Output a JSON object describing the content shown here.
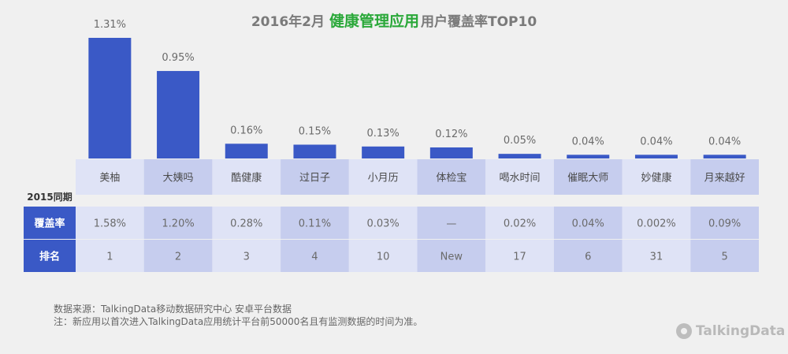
{
  "title": {
    "prefix": "2016年2月",
    "highlight": "健康管理应用",
    "suffix": "用户覆盖率TOP10"
  },
  "colors": {
    "bar": "#3a59c6",
    "row_head": "#3a59c6",
    "table_light": "#dfe3f6",
    "table_dark": "#c6cdee",
    "new_label": "#2aa839"
  },
  "chart_data": {
    "type": "bar",
    "categories": [
      "美柚",
      "大姨吗",
      "酷健康",
      "过日子",
      "小月历",
      "体检宝",
      "喝水时间",
      "催眠大师",
      "妙健康",
      "月来越好"
    ],
    "values": [
      1.31,
      0.95,
      0.16,
      0.15,
      0.13,
      0.12,
      0.05,
      0.04,
      0.04,
      0.04
    ],
    "value_labels": [
      "1.31%",
      "0.95%",
      "0.16%",
      "0.15%",
      "0.13%",
      "0.12%",
      "0.05%",
      "0.04%",
      "0.04%",
      "0.04%"
    ],
    "unit": "%",
    "ylim": [
      0,
      1.31
    ],
    "grid": false,
    "legend": "none"
  },
  "table": {
    "year_label": "2015同期",
    "rows": [
      {
        "header": "覆盖率",
        "cells": [
          "1.58%",
          "1.20%",
          "0.28%",
          "0.11%",
          "0.03%",
          "—",
          "0.02%",
          "0.04%",
          "0.002%",
          "0.09%"
        ]
      },
      {
        "header": "排名",
        "cells": [
          "1",
          "2",
          "3",
          "4",
          "10",
          "New",
          "17",
          "6",
          "31",
          "5"
        ]
      }
    ]
  },
  "footnote": {
    "source": "数据来源：TalkingData移动数据研究中心 安卓平台数据",
    "note": "注：新应用以首次进入TalkingData应用统计平台前50000名且有监测数据的时间为准。"
  },
  "logo": {
    "text": "TalkingData"
  }
}
